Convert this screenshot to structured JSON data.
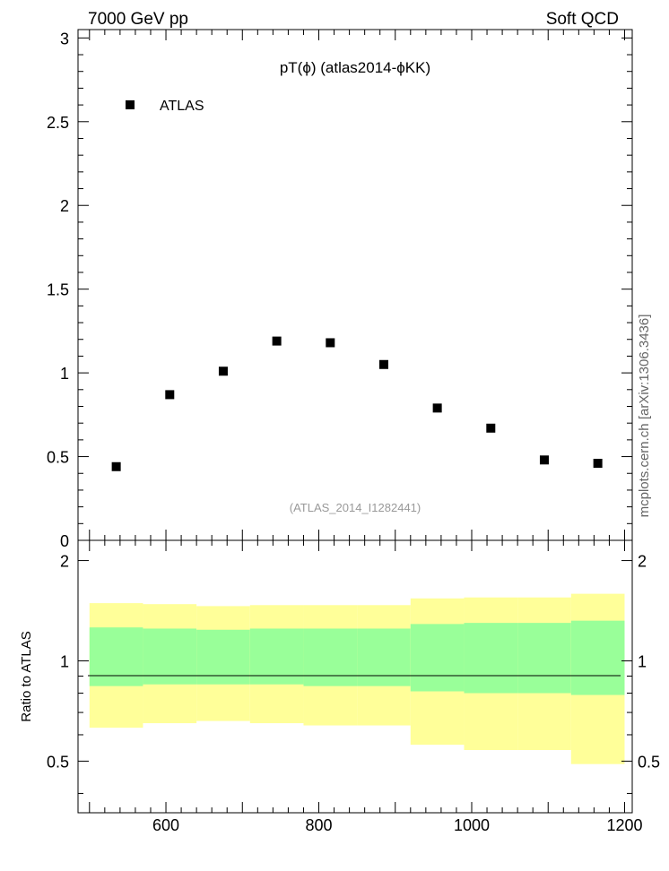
{
  "header": {
    "left": "7000 GeV pp",
    "right": "Soft QCD"
  },
  "side_text": "mcplots.cern.ch [arXiv:1306.3436]",
  "chart_data": [
    {
      "type": "scatter",
      "title": "pT(ϕ) (atlas2014-ϕKK)",
      "watermark": "(ATLAS_2014_I1282441)",
      "xlim": [
        485,
        1210
      ],
      "ylim": [
        0,
        3.05
      ],
      "x_ticks": [
        "600",
        "800",
        "1000",
        "1200"
      ],
      "y_ticks": [
        "0.5",
        "1",
        "1.5",
        "2",
        "2.5",
        "3"
      ],
      "y_bottom_label": "0",
      "legend": {
        "placement": "top-left",
        "entries": [
          "ATLAS"
        ]
      },
      "series": [
        {
          "name": "ATLAS",
          "marker": "square",
          "color": "#000000",
          "x": [
            535,
            605,
            675,
            745,
            815,
            885,
            955,
            1025,
            1095,
            1165
          ],
          "y": [
            0.44,
            0.87,
            1.01,
            1.19,
            1.18,
            1.05,
            0.79,
            0.67,
            0.48,
            0.46
          ]
        }
      ]
    },
    {
      "type": "area",
      "ylabel": "Ratio to ATLAS",
      "xlim": [
        485,
        1210
      ],
      "ylim": [
        0.35,
        2.3
      ],
      "y_ticks": [
        "0.5",
        "1",
        "2"
      ],
      "x_ticks": [
        "600",
        "800",
        "1000",
        "1200"
      ],
      "reference_line": 1,
      "band_colors": {
        "outer": "#ffff99",
        "inner": "#99ff99"
      },
      "bins": [
        {
          "x0": 500,
          "x1": 570,
          "outer": [
            0.63,
            1.49
          ],
          "inner": [
            0.84,
            1.26
          ]
        },
        {
          "x0": 570,
          "x1": 640,
          "outer": [
            0.65,
            1.48
          ],
          "inner": [
            0.85,
            1.25
          ]
        },
        {
          "x0": 640,
          "x1": 710,
          "outer": [
            0.66,
            1.46
          ],
          "inner": [
            0.85,
            1.24
          ]
        },
        {
          "x0": 710,
          "x1": 780,
          "outer": [
            0.65,
            1.47
          ],
          "inner": [
            0.85,
            1.25
          ]
        },
        {
          "x0": 780,
          "x1": 850,
          "outer": [
            0.64,
            1.47
          ],
          "inner": [
            0.84,
            1.25
          ]
        },
        {
          "x0": 850,
          "x1": 920,
          "outer": [
            0.64,
            1.47
          ],
          "inner": [
            0.84,
            1.25
          ]
        },
        {
          "x0": 920,
          "x1": 990,
          "outer": [
            0.56,
            1.54
          ],
          "inner": [
            0.81,
            1.29
          ]
        },
        {
          "x0": 990,
          "x1": 1060,
          "outer": [
            0.54,
            1.55
          ],
          "inner": [
            0.8,
            1.3
          ]
        },
        {
          "x0": 1060,
          "x1": 1130,
          "outer": [
            0.54,
            1.55
          ],
          "inner": [
            0.8,
            1.3
          ]
        },
        {
          "x0": 1130,
          "x1": 1200,
          "outer": [
            0.49,
            1.59
          ],
          "inner": [
            0.79,
            1.32
          ]
        }
      ]
    }
  ]
}
